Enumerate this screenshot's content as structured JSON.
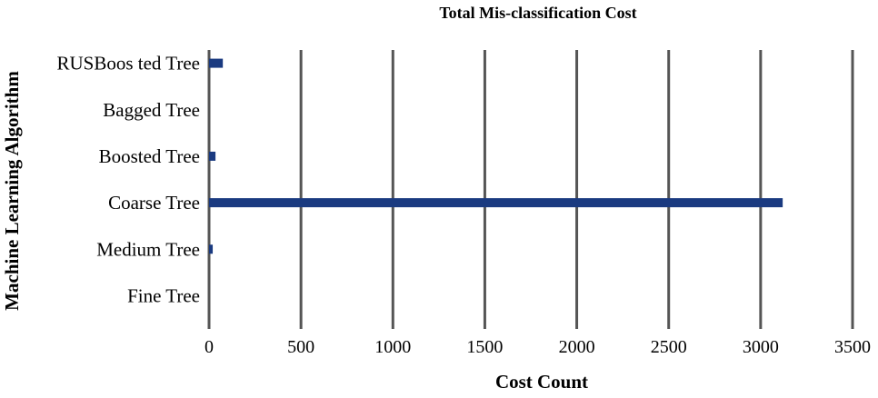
{
  "chart_data": {
    "type": "bar",
    "orientation": "horizontal",
    "title": "Total Mis-classification Cost",
    "xlabel": "Cost Count",
    "ylabel": "Machine Learning Algorithm",
    "categories": [
      "RUSBoos ted Tree",
      "Bagged Tree",
      "Boosted Tree",
      "Coarse Tree",
      "Medium Tree",
      "Fine Tree"
    ],
    "values": [
      75,
      0,
      35,
      3120,
      20,
      0
    ],
    "xlim": [
      0,
      3500
    ],
    "xticks": [
      "0",
      "500",
      "1000",
      "1500",
      "2000",
      "2500",
      "3000",
      "3500"
    ],
    "grid": true,
    "legend": "none",
    "bar_color": "#1a3a80",
    "grid_color": "#555555"
  }
}
